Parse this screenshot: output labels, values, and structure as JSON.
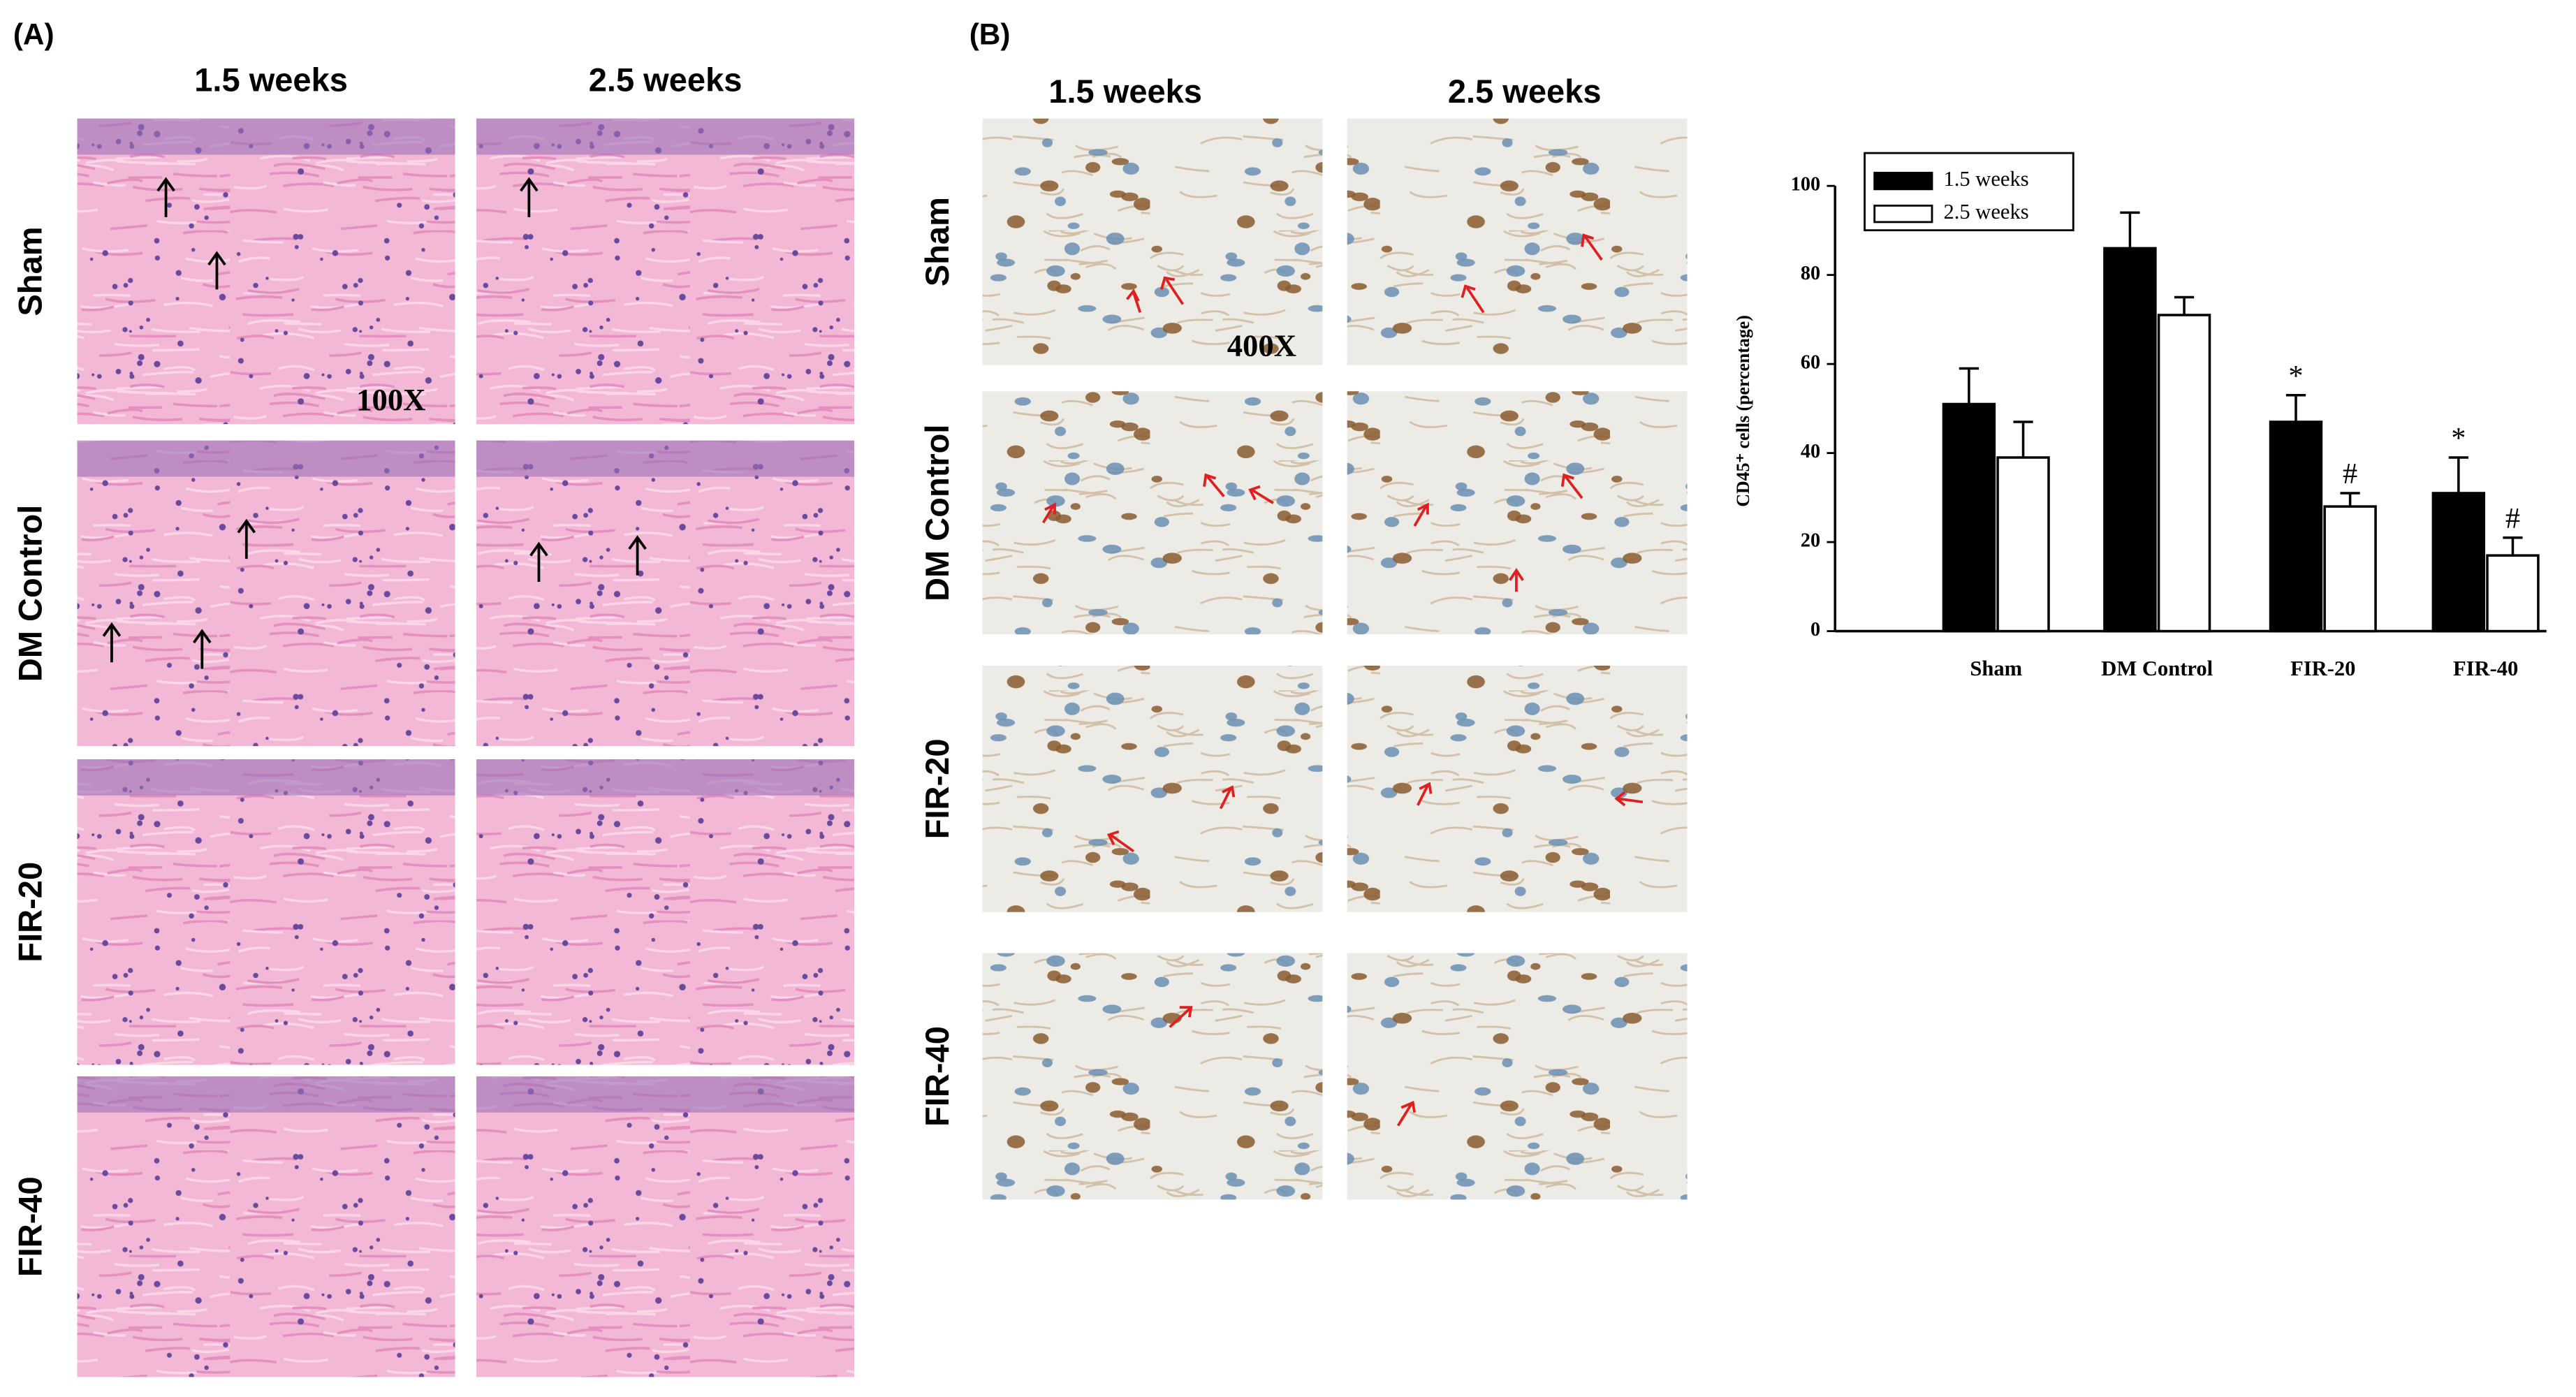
{
  "panel_a": {
    "label": "(A)",
    "columns": [
      "1.5 weeks",
      "2.5 weeks"
    ],
    "rows": [
      "Sham",
      "DM Control",
      "FIR-20",
      "FIR-40"
    ],
    "magnification": "100X"
  },
  "panel_b": {
    "label": "(B)",
    "columns": [
      "1.5 weeks",
      "2.5 weeks"
    ],
    "rows": [
      "Sham",
      "DM Control",
      "FIR-20",
      "FIR-40"
    ],
    "magnification": "400X"
  },
  "chart_data": {
    "type": "bar",
    "categories": [
      "Sham",
      "DM Control",
      "FIR-20",
      "FIR-40"
    ],
    "series": [
      {
        "name": "1.5 weeks",
        "color": "#000000",
        "values": [
          51,
          86,
          47,
          31
        ],
        "errors": [
          8,
          8,
          6,
          8
        ],
        "markers": [
          null,
          null,
          "*",
          "*"
        ]
      },
      {
        "name": "2.5 weeks",
        "color": "#ffffff",
        "values": [
          39,
          71,
          28,
          17
        ],
        "errors": [
          8,
          4,
          3,
          4
        ],
        "markers": [
          null,
          null,
          "#",
          "#"
        ]
      }
    ],
    "ylabel": "CD45⁺ cells (percentage)",
    "ylim": [
      0,
      100
    ],
    "yticks": [
      0,
      20,
      40,
      60,
      80,
      100
    ]
  }
}
